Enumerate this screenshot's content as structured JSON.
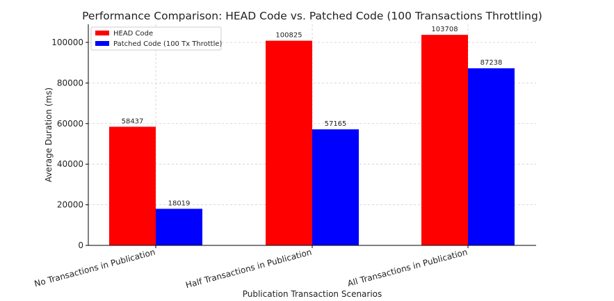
{
  "chart_data": {
    "type": "bar",
    "title": "Performance Comparison: HEAD Code vs. Patched Code (100 Transactions Throttling)",
    "xlabel": "Publication Transaction Scenarios",
    "ylabel": "Average Duration (ms)",
    "categories": [
      "No Transactions in Publication",
      "Half Transactions in Publication",
      "All Transactions in Publication"
    ],
    "series": [
      {
        "name": "HEAD Code",
        "color": "#ff0000",
        "values": [
          58437,
          100825,
          103708
        ]
      },
      {
        "name": "Patched Code (100 Tx Throttle)",
        "color": "#0000ff",
        "values": [
          18019,
          57165,
          87238
        ]
      }
    ],
    "ylim": [
      0,
      108893
    ],
    "yticks": [
      0,
      20000,
      40000,
      60000,
      80000,
      100000
    ],
    "grid": true,
    "legend_position": "top-left"
  }
}
